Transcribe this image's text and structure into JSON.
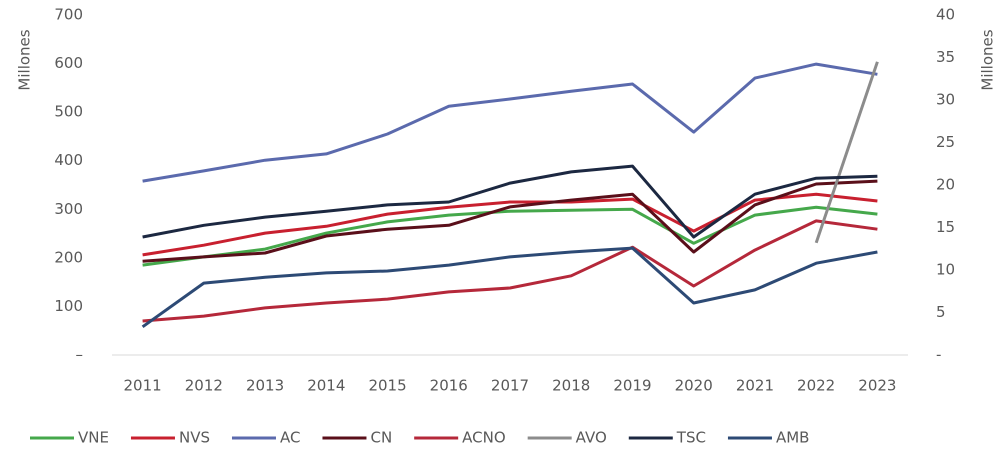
{
  "chart_data": {
    "type": "line",
    "categories": [
      "2011",
      "2012",
      "2013",
      "2014",
      "2015",
      "2016",
      "2017",
      "2018",
      "2019",
      "2020",
      "2021",
      "2022",
      "2023"
    ],
    "y_label": "Millones",
    "y2_label": "Millones",
    "ylim": [
      0,
      700
    ],
    "yticks": [
      {
        "value": 0,
        "label": "–"
      },
      100,
      200,
      300,
      400,
      500,
      600,
      700
    ],
    "y2lim": [
      0,
      40
    ],
    "y2ticks": [
      {
        "value": 0,
        "label": "-"
      },
      5,
      10,
      15,
      20,
      25,
      30,
      35,
      40
    ],
    "grid": false,
    "legend": "bottom",
    "series": [
      {
        "name": "VNE",
        "color": "#45a84b",
        "values": [
          185,
          202,
          218,
          251,
          274,
          288,
          296,
          298,
          300,
          230,
          288,
          304,
          290
        ]
      },
      {
        "name": "NVS",
        "color": "#c8202f",
        "values": [
          206,
          226,
          251,
          265,
          290,
          304,
          315,
          315,
          321,
          255,
          319,
          331,
          317
        ]
      },
      {
        "name": "AC",
        "color": "#5b6aad",
        "values": [
          358,
          379,
          401,
          414,
          455,
          512,
          527,
          543,
          558,
          459,
          570,
          599,
          578
        ]
      },
      {
        "name": "CN",
        "color": "#5a0f1a",
        "values": [
          193,
          202,
          210,
          245,
          259,
          267,
          305,
          319,
          331,
          212,
          309,
          352,
          358
        ]
      },
      {
        "name": "ACNO",
        "color": "#b5283a",
        "values": [
          70,
          80,
          97,
          107,
          115,
          130,
          138,
          163,
          222,
          142,
          216,
          276,
          259
        ]
      },
      {
        "name": "AVO",
        "color": "#8c8c8c",
        "axis": "y2",
        "values": [
          null,
          null,
          null,
          null,
          null,
          null,
          null,
          null,
          null,
          null,
          null,
          13.2,
          34.5
        ]
      },
      {
        "name": "TSC",
        "color": "#1c2841",
        "values": [
          243,
          267,
          284,
          296,
          309,
          315,
          354,
          377,
          389,
          243,
          331,
          364,
          368
        ]
      },
      {
        "name": "AMB",
        "color": "#2d4a75",
        "values": [
          58,
          148,
          160,
          169,
          173,
          185,
          202,
          212,
          220,
          107,
          134,
          189,
          212
        ]
      }
    ]
  }
}
